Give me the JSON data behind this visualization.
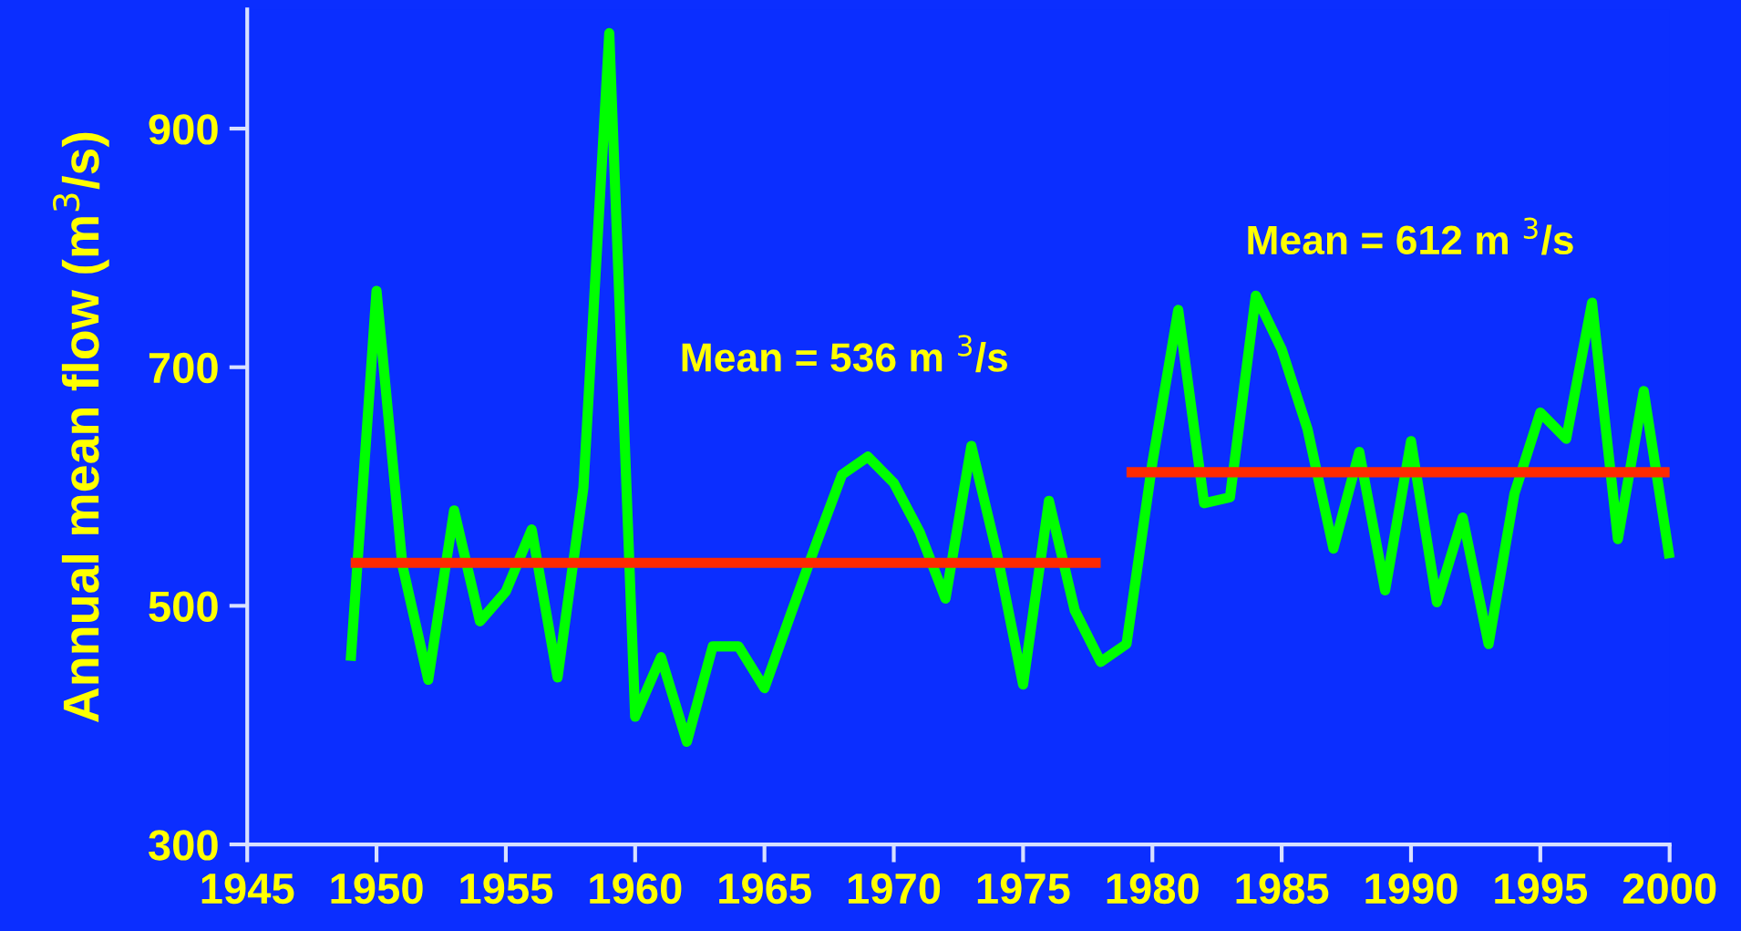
{
  "chart_data": {
    "type": "line",
    "ylabel": "Annual mean flow (m$^{3}$/s)",
    "x": [
      1949,
      1950,
      1951,
      1952,
      1953,
      1954,
      1955,
      1956,
      1957,
      1958,
      1959,
      1960,
      1961,
      1962,
      1963,
      1964,
      1965,
      1966,
      1967,
      1968,
      1969,
      1970,
      1971,
      1972,
      1973,
      1974,
      1975,
      1976,
      1977,
      1978,
      1979,
      1980,
      1981,
      1982,
      1983,
      1984,
      1985,
      1986,
      1987,
      1988,
      1989,
      1990,
      1991,
      1992,
      1993,
      1994,
      1995,
      1996,
      1997,
      1998,
      1999,
      2000
    ],
    "series": [
      {
        "color": "#00ff00",
        "values": [
          454,
          764,
          534,
          438,
          580,
          487,
          512,
          564,
          440,
          599,
          980,
          407,
          457,
          386,
          466,
          466,
          431,
          492,
          552,
          610,
          625,
          603,
          562,
          506,
          634,
          543,
          434,
          588,
          496,
          453,
          468,
          620,
          748,
          586,
          591,
          760,
          715,
          648,
          548,
          629,
          513,
          638,
          503,
          574,
          468,
          594,
          662,
          640,
          754,
          556,
          680,
          540
        ]
      },
      {
        "color": "#ff2a00",
        "x": [
          1949,
          1978
        ],
        "values": [
          536,
          536
        ]
      },
      {
        "color": "#ff2a00",
        "x": [
          1979,
          2000
        ],
        "values": [
          612,
          612
        ]
      }
    ],
    "annotations": [
      "Mean = 536 m $^{3}$/s",
      "Mean = 612 m $^{3}$/s"
    ],
    "xlim": [
      1945,
      2000
    ],
    "xticks": [
      1945,
      1950,
      1955,
      1960,
      1965,
      1970,
      1975,
      1980,
      1985,
      1990,
      1995,
      2000
    ],
    "ylim": [
      300,
      1000
    ],
    "yticks": [
      300,
      500,
      700,
      900
    ],
    "grid": false,
    "legend": false,
    "marker": "none",
    "line_style": "solid"
  }
}
